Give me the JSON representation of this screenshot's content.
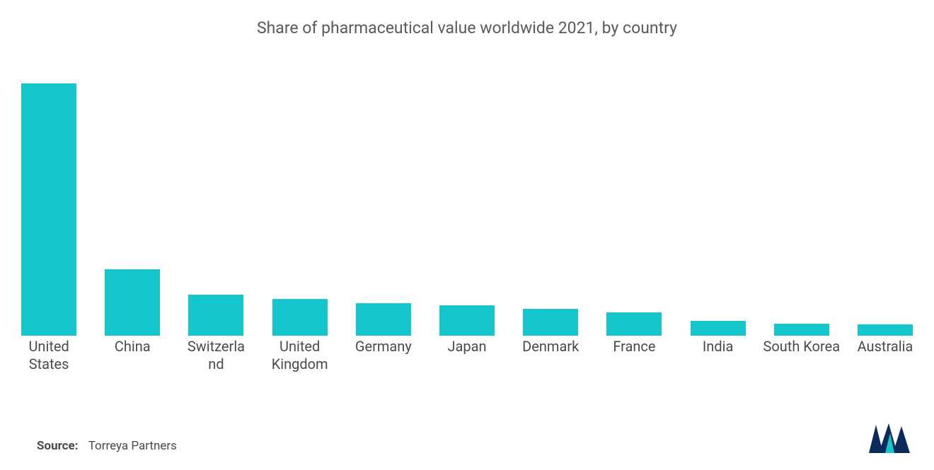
{
  "chart": {
    "type": "bar",
    "title": "Share of pharmaceutical value worldwide 2021, by country",
    "title_fontsize": 23,
    "title_color": "#5a5a5a",
    "categories": [
      "United States",
      "China",
      "Switzerland",
      "United Kingdom",
      "Germany",
      "Japan",
      "Denmark",
      "France",
      "India",
      "South Korea",
      "Australia"
    ],
    "values": [
      40,
      10.5,
      6.5,
      5.8,
      5.2,
      4.8,
      4.3,
      3.7,
      2.4,
      1.9,
      1.8
    ],
    "ylim": [
      0,
      42
    ],
    "bar_color": "#15c7cc",
    "bar_width_pct": 66,
    "label_fontsize": 20,
    "label_color": "#4a4a4a",
    "background_color": "#ffffff",
    "grid": false
  },
  "source": {
    "label": "Source:",
    "text": "Torreya Partners",
    "fontsize": 17,
    "color": "#4a4a4a"
  },
  "logo": {
    "type": "mordor-intelligence-mark",
    "primary_color": "#0a2b5c",
    "accent_color": "#15c7cc",
    "width": 58,
    "height": 42
  }
}
